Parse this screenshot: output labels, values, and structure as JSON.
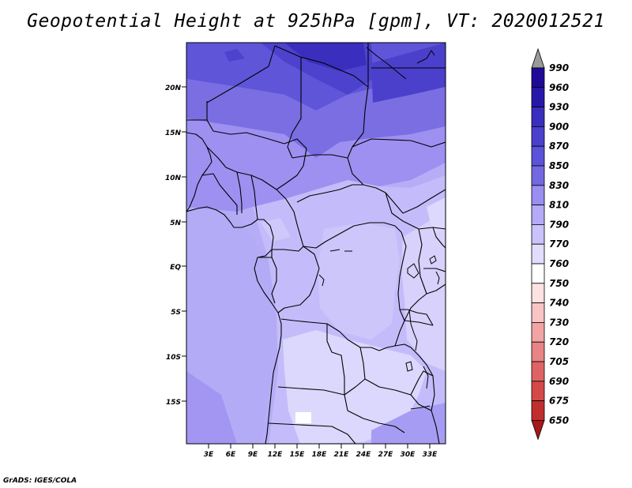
{
  "map": {
    "title": "Geopotential Height at 925hPa [gpm], VT: 2020012521",
    "footer": "GrADS: IGES/COLA",
    "lat_labels": [
      "20N",
      "15N",
      "10N",
      "5N",
      "EQ",
      "5S",
      "10S",
      "15S"
    ],
    "lon_labels": [
      "3E",
      "6E",
      "9E",
      "12E",
      "15E",
      "18E",
      "21E",
      "24E",
      "27E",
      "30E",
      "33E"
    ]
  },
  "colorbar": {
    "levels": [
      "990",
      "960",
      "930",
      "900",
      "870",
      "850",
      "830",
      "810",
      "790",
      "770",
      "760",
      "750",
      "740",
      "730",
      "720",
      "705",
      "690",
      "675",
      "650"
    ],
    "colors": {
      "990": "#1e0a96",
      "960": "#2818aa",
      "930": "#3a2ebe",
      "900": "#4a40cc",
      "870": "#5a52d8",
      "850": "#7468e0",
      "830": "#9a8ef0",
      "810": "#b4aaf6",
      "790": "#cac2fa",
      "770": "#e2ddfc",
      "760": "#ffffff",
      "750": "#fde2e2",
      "740": "#f8c4c4",
      "730": "#f2a4a4",
      "720": "#e88484",
      "705": "#de6464",
      "690": "#d44848",
      "675": "#c02e2e",
      "650": "#a81818",
      "top_arrow": "#9a9a9a"
    }
  }
}
